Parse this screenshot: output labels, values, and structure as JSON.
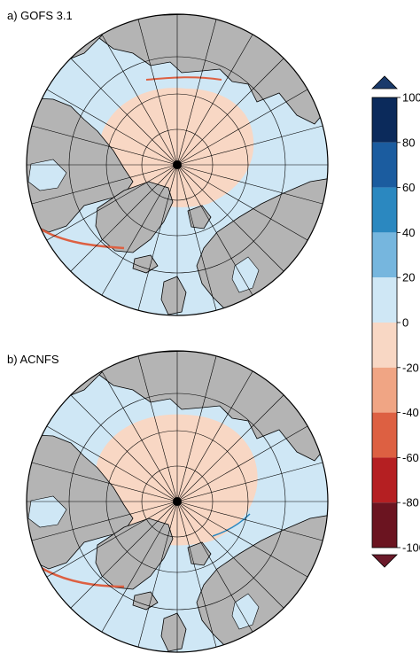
{
  "panels": [
    {
      "label": "a) GOFS 3.1"
    },
    {
      "label": "b) ACNFS"
    }
  ],
  "colorbar": {
    "ticks": [
      "100",
      "80",
      "60",
      "40",
      "20",
      "0",
      "-20",
      "-40",
      "-60",
      "-80",
      "-100"
    ],
    "bins": [
      {
        "from": 80,
        "to": 100,
        "color": "#0b2a5b"
      },
      {
        "from": 60,
        "to": 80,
        "color": "#1b5c9f"
      },
      {
        "from": 40,
        "to": 60,
        "color": "#2b88c0"
      },
      {
        "from": 20,
        "to": 40,
        "color": "#76b6de"
      },
      {
        "from": 0,
        "to": 20,
        "color": "#cfe7f5"
      },
      {
        "from": -20,
        "to": 0,
        "color": "#f8d7c4"
      },
      {
        "from": -40,
        "to": -20,
        "color": "#f0a584"
      },
      {
        "from": -60,
        "to": -40,
        "color": "#dd6042"
      },
      {
        "from": -80,
        "to": -60,
        "color": "#b51f22"
      },
      {
        "from": -100,
        "to": -80,
        "color": "#6b1420"
      }
    ],
    "extend_max_color": "#1a3a6b",
    "extend_min_color": "#6b1a2a"
  },
  "colors": {
    "ocean": "#cfe7f5",
    "land": "#b4b4b4",
    "reduced_ice": "#f8d7c4",
    "strong_negative": "#dd6042",
    "positive": "#2b88c0",
    "grid": "#000000"
  }
}
